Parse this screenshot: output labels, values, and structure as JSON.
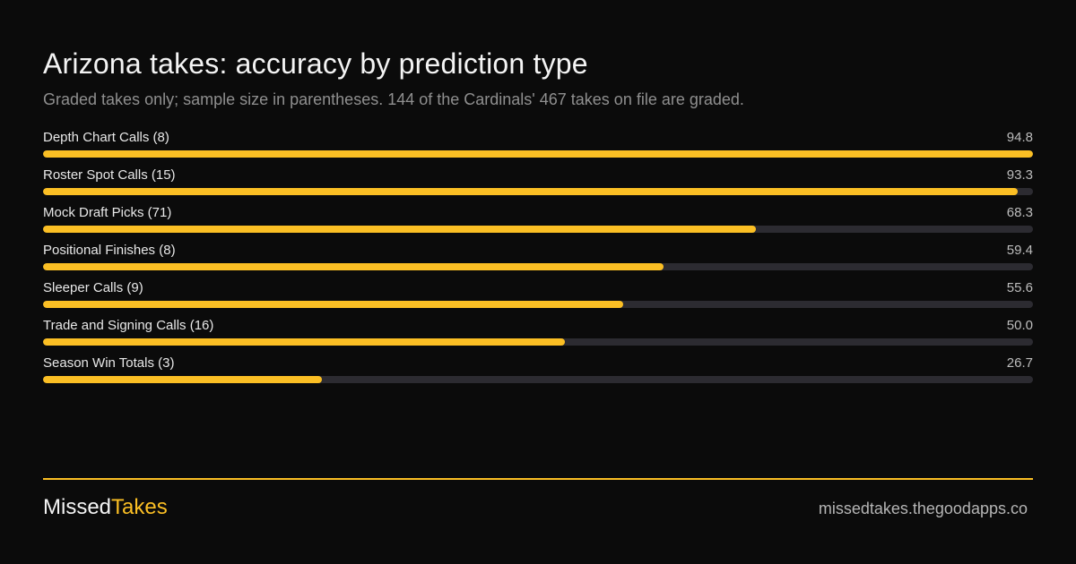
{
  "colors": {
    "background": "#0b0b0b",
    "accent": "#fbbf24",
    "track": "#2c2b31"
  },
  "header": {
    "title": "Arizona takes: accuracy by prediction type",
    "subtitle": "Graded takes only; sample size in parentheses. 144 of the Cardinals' 467 takes on file are graded."
  },
  "chart_data": {
    "type": "bar",
    "orientation": "horizontal",
    "title": "Arizona takes: accuracy by prediction type",
    "subtitle": "Graded takes only; sample size in parentheses. 144 of the Cardinals' 467 takes on file are graded.",
    "xlim": [
      0,
      94.8
    ],
    "categories": [
      "Depth Chart Calls (8)",
      "Roster Spot Calls (15)",
      "Mock Draft Picks (71)",
      "Positional Finishes (8)",
      "Sleeper Calls (9)",
      "Trade and Signing Calls (16)",
      "Season Win Totals (3)"
    ],
    "values": [
      94.8,
      93.3,
      68.3,
      59.4,
      55.6,
      50.0,
      26.7
    ],
    "value_labels": [
      "94.8",
      "93.3",
      "68.3",
      "59.4",
      "55.6",
      "50.0",
      "26.7"
    ],
    "grid": false,
    "legend": "none"
  },
  "footer": {
    "brand_part1": "Missed",
    "brand_part2": "Takes",
    "url": "missedtakes.thegoodapps.co"
  }
}
